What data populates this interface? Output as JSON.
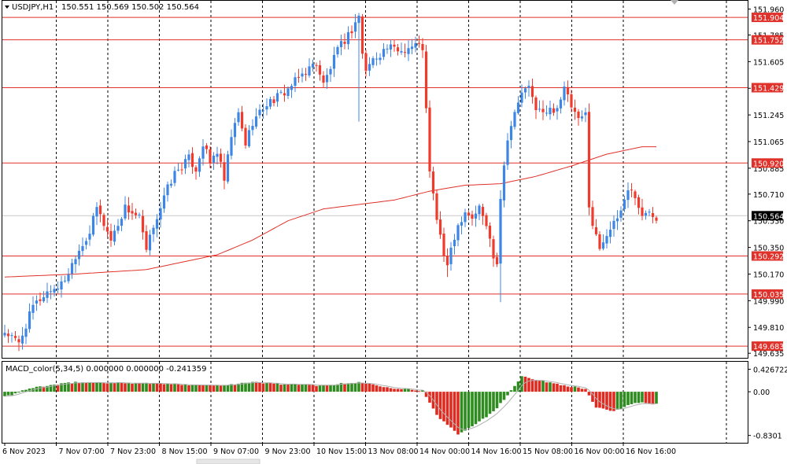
{
  "header": {
    "symbol_tf": "USDJPY,H1",
    "ohlc": "150.551 150.569 150.502 150.564",
    "macd_label": "MACD_color(5,34,5) 0.000000 0.000000 -0.241359"
  },
  "colors": {
    "bull": "#3d86e6",
    "bear": "#ef3a2c",
    "level_line": "#e0312a",
    "ma_line": "#e0312a",
    "grid": "#000000",
    "macd_up": "#2e8b1f",
    "macd_down": "#e02a1f",
    "signal": "#b0b0b0"
  },
  "chart_data": [
    {
      "type": "candlestick",
      "title": "USDJPY,H1",
      "ylim": [
        149.62,
        152.0
      ],
      "y_ticks": [
        "151.960",
        "151.785",
        "151.605",
        "151.425",
        "151.245",
        "151.065",
        "150.885",
        "150.710",
        "150.530",
        "150.350",
        "150.170",
        "149.990",
        "149.810",
        "149.635"
      ],
      "levels": [
        "151.904",
        "151.752",
        "151.429",
        "150.920",
        "150.292",
        "150.035",
        "149.683"
      ],
      "current_price": "150.564",
      "x_labels": [
        "6 Nov 2023",
        "7 Nov 07:00",
        "7 Nov 23:00",
        "8 Nov 15:00",
        "9 Nov 07:00",
        "9 Nov 23:00",
        "10 Nov 15:00",
        "13 Nov 08:00",
        "14 Nov 00:00",
        "14 Nov 16:00",
        "15 Nov 08:00",
        "16 Nov 00:00",
        "16 Nov 16:00"
      ],
      "close_path": [
        [
          0,
          149.78
        ],
        [
          4,
          149.7
        ],
        [
          8,
          149.95
        ],
        [
          12,
          150.05
        ],
        [
          16,
          150.1
        ],
        [
          18,
          150.18
        ],
        [
          20,
          150.3
        ],
        [
          24,
          150.45
        ],
        [
          26,
          150.62
        ],
        [
          30,
          150.4
        ],
        [
          34,
          150.62
        ],
        [
          38,
          150.55
        ],
        [
          40,
          150.32
        ],
        [
          42,
          150.5
        ],
        [
          44,
          150.62
        ],
        [
          46,
          150.75
        ],
        [
          48,
          150.85
        ],
        [
          52,
          150.95
        ],
        [
          54,
          150.88
        ],
        [
          56,
          151.05
        ],
        [
          58,
          150.92
        ],
        [
          60,
          151.0
        ],
        [
          62,
          150.8
        ],
        [
          64,
          151.1
        ],
        [
          66,
          151.25
        ],
        [
          68,
          151.05
        ],
        [
          70,
          151.2
        ],
        [
          74,
          151.32
        ],
        [
          78,
          151.38
        ],
        [
          80,
          151.42
        ],
        [
          84,
          151.52
        ],
        [
          88,
          151.6
        ],
        [
          90,
          151.45
        ],
        [
          94,
          151.68
        ],
        [
          98,
          151.82
        ],
        [
          100,
          151.92
        ],
        [
          101,
          151.65
        ],
        [
          102,
          151.55
        ],
        [
          104,
          151.62
        ],
        [
          108,
          151.7
        ],
        [
          112,
          151.68
        ],
        [
          116,
          151.72
        ],
        [
          118,
          151.7
        ],
        [
          120,
          150.85
        ],
        [
          121,
          150.7
        ],
        [
          122,
          150.55
        ],
        [
          124,
          150.3
        ],
        [
          125,
          150.2
        ],
        [
          126,
          150.35
        ],
        [
          128,
          150.5
        ],
        [
          130,
          150.6
        ],
        [
          132,
          150.55
        ],
        [
          134,
          150.62
        ],
        [
          136,
          150.5
        ],
        [
          138,
          150.3
        ],
        [
          139,
          150.25
        ],
        [
          140,
          150.7
        ],
        [
          142,
          151.1
        ],
        [
          144,
          151.25
        ],
        [
          146,
          151.4
        ],
        [
          148,
          151.42
        ],
        [
          150,
          151.3
        ],
        [
          152,
          151.25
        ],
        [
          156,
          151.3
        ],
        [
          158,
          151.42
        ],
        [
          160,
          151.3
        ],
        [
          162,
          151.2
        ],
        [
          164,
          151.25
        ],
        [
          165,
          150.65
        ],
        [
          166,
          150.5
        ],
        [
          168,
          150.35
        ],
        [
          170,
          150.45
        ],
        [
          172,
          150.5
        ],
        [
          174,
          150.6
        ],
        [
          176,
          150.75
        ],
        [
          178,
          150.7
        ],
        [
          180,
          150.55
        ],
        [
          182,
          150.6
        ],
        [
          184,
          150.56
        ]
      ],
      "ma_path": [
        [
          0,
          150.15
        ],
        [
          20,
          150.17
        ],
        [
          40,
          150.2
        ],
        [
          60,
          150.3
        ],
        [
          70,
          150.4
        ],
        [
          80,
          150.53
        ],
        [
          90,
          150.61
        ],
        [
          100,
          150.64
        ],
        [
          110,
          150.67
        ],
        [
          120,
          150.73
        ],
        [
          130,
          150.77
        ],
        [
          140,
          150.78
        ],
        [
          150,
          150.83
        ],
        [
          160,
          150.9
        ],
        [
          170,
          150.98
        ],
        [
          180,
          151.03
        ],
        [
          184,
          151.03
        ]
      ],
      "wick_extremes": [
        [
          100,
          151.2
        ],
        [
          140,
          149.98
        ],
        [
          125,
          150.15
        ]
      ]
    },
    {
      "type": "bar",
      "title": "MACD_color(5,34,5)",
      "ylim": [
        -0.85,
        0.45
      ],
      "y_ticks": [
        "0.426722",
        "0.00",
        "-0.8301"
      ],
      "macd_path": [
        [
          0,
          -0.1
        ],
        [
          8,
          0.08
        ],
        [
          20,
          0.18
        ],
        [
          40,
          0.16
        ],
        [
          60,
          0.12
        ],
        [
          70,
          0.18
        ],
        [
          80,
          0.14
        ],
        [
          90,
          0.12
        ],
        [
          100,
          0.18
        ],
        [
          110,
          0.07
        ],
        [
          118,
          0.02
        ],
        [
          122,
          -0.45
        ],
        [
          128,
          -0.8
        ],
        [
          132,
          -0.65
        ],
        [
          138,
          -0.38
        ],
        [
          141,
          -0.15
        ],
        [
          146,
          0.3
        ],
        [
          152,
          0.2
        ],
        [
          160,
          0.1
        ],
        [
          164,
          0.05
        ],
        [
          167,
          -0.3
        ],
        [
          172,
          -0.38
        ],
        [
          178,
          -0.2
        ],
        [
          184,
          -0.24
        ]
      ]
    }
  ]
}
